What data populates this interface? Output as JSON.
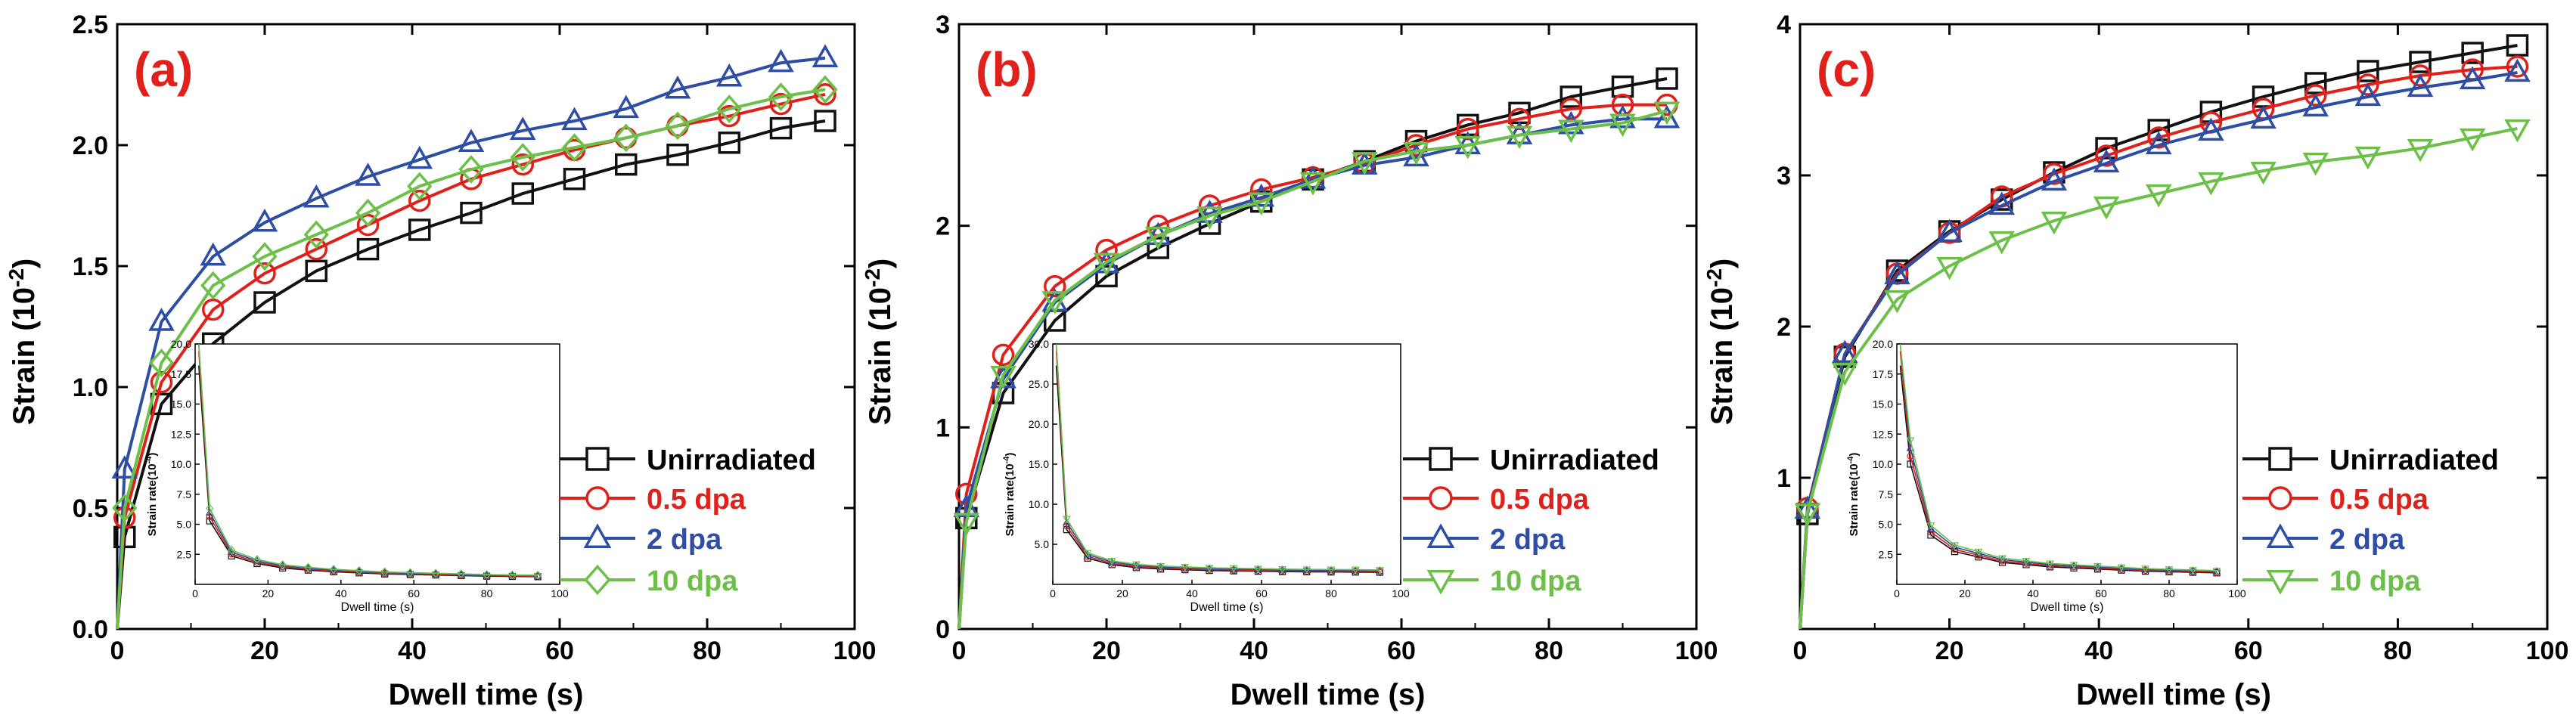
{
  "colors": {
    "Unirradiated": "#111111",
    "0.5 dpa": "#e0201b",
    "2 dpa": "#2e4ea5",
    "10 dpa": "#6cc04a",
    "panel_label": "#e0201b"
  },
  "chart_data": [
    {
      "type": "line",
      "panel": "(a)",
      "xlabel": "Dwell time (s)",
      "ylabel_prefix": "Strain (10",
      "ylabel_exp": "-2",
      "ylabel_suffix": ")",
      "xlim": [
        0,
        100
      ],
      "ylim": [
        0,
        2.5
      ],
      "xticks": [
        0,
        20,
        40,
        60,
        80,
        100
      ],
      "yticks": [
        0.0,
        0.5,
        1.0,
        1.5,
        2.0,
        2.5
      ],
      "ytick_labels": [
        "0.0",
        "0.5",
        "1.0",
        "1.5",
        "2.0",
        "2.5"
      ],
      "x": [
        0,
        1,
        6,
        13,
        20,
        27,
        34,
        41,
        48,
        55,
        62,
        69,
        76,
        83,
        90,
        96
      ],
      "series": [
        {
          "name": "Unirradiated",
          "marker": "square",
          "values": [
            0,
            0.38,
            0.93,
            1.18,
            1.35,
            1.48,
            1.57,
            1.65,
            1.72,
            1.8,
            1.86,
            1.92,
            1.96,
            2.01,
            2.07,
            2.1
          ]
        },
        {
          "name": "0.5 dpa",
          "marker": "circle",
          "values": [
            0,
            0.46,
            1.02,
            1.32,
            1.47,
            1.57,
            1.67,
            1.77,
            1.86,
            1.92,
            1.98,
            2.03,
            2.08,
            2.12,
            2.17,
            2.21
          ]
        },
        {
          "name": "2 dpa",
          "marker": "triangle-up",
          "values": [
            0,
            0.66,
            1.27,
            1.54,
            1.68,
            1.78,
            1.87,
            1.94,
            2.01,
            2.06,
            2.1,
            2.15,
            2.23,
            2.28,
            2.34,
            2.36
          ]
        },
        {
          "name": "10 dpa",
          "marker": "diamond",
          "values": [
            0,
            0.5,
            1.1,
            1.42,
            1.54,
            1.63,
            1.72,
            1.83,
            1.9,
            1.95,
            1.99,
            2.03,
            2.08,
            2.15,
            2.2,
            2.23
          ]
        }
      ],
      "inset": {
        "xlabel": "Dwell time (s)",
        "ylabel": "Strain rate(10",
        "ylabel_exp": "-4",
        "ylabel_suffix": ")",
        "xlim": [
          0,
          100
        ],
        "ylim": [
          0,
          20
        ],
        "xticks": [
          0,
          20,
          40,
          60,
          80,
          100
        ],
        "yticks": [
          2.5,
          5.0,
          7.5,
          10.0,
          12.5,
          15.0,
          17.5,
          20.0
        ],
        "ytick_labels": [
          "2.5",
          "5.0",
          "7.5",
          "10.0",
          "12.5",
          "15.0",
          "17.5",
          "20.0"
        ],
        "x": [
          1,
          4,
          10,
          17,
          24,
          31,
          38,
          45,
          52,
          59,
          66,
          73,
          80,
          87,
          94
        ],
        "values": [
          20.0,
          5.8,
          2.6,
          1.9,
          1.5,
          1.3,
          1.15,
          1.05,
          0.95,
          0.9,
          0.85,
          0.8,
          0.75,
          0.72,
          0.7
        ]
      }
    },
    {
      "type": "line",
      "panel": "(b)",
      "xlabel": "Dwell time (s)",
      "ylabel_prefix": "Strain (10",
      "ylabel_exp": "-2",
      "ylabel_suffix": ")",
      "xlim": [
        0,
        100
      ],
      "ylim": [
        0,
        3
      ],
      "xticks": [
        0,
        20,
        40,
        60,
        80,
        100
      ],
      "yticks": [
        0,
        1,
        2,
        3
      ],
      "ytick_labels": [
        "0",
        "1",
        "2",
        "3"
      ],
      "x": [
        0,
        1,
        6,
        13,
        20,
        27,
        34,
        41,
        48,
        55,
        62,
        69,
        76,
        83,
        90,
        96
      ],
      "series": [
        {
          "name": "Unirradiated",
          "marker": "square",
          "values": [
            0,
            0.55,
            1.17,
            1.53,
            1.75,
            1.89,
            2.01,
            2.12,
            2.23,
            2.32,
            2.42,
            2.5,
            2.56,
            2.64,
            2.69,
            2.73
          ]
        },
        {
          "name": "0.5 dpa",
          "marker": "circle",
          "values": [
            0,
            0.67,
            1.36,
            1.7,
            1.88,
            2.0,
            2.1,
            2.18,
            2.24,
            2.31,
            2.4,
            2.48,
            2.53,
            2.58,
            2.6,
            2.6
          ]
        },
        {
          "name": "2 dpa",
          "marker": "triangle-up",
          "values": [
            0,
            0.6,
            1.24,
            1.62,
            1.81,
            1.95,
            2.06,
            2.14,
            2.23,
            2.3,
            2.34,
            2.4,
            2.45,
            2.5,
            2.53,
            2.53
          ]
        },
        {
          "name": "10 dpa",
          "marker": "triangle-down",
          "values": [
            0,
            0.53,
            1.26,
            1.63,
            1.82,
            1.95,
            2.05,
            2.12,
            2.22,
            2.32,
            2.37,
            2.4,
            2.45,
            2.48,
            2.51,
            2.57
          ]
        }
      ],
      "inset": {
        "xlabel": "Dwell time (s)",
        "ylabel": "Strain rate(10",
        "ylabel_exp": "-4",
        "ylabel_suffix": ")",
        "xlim": [
          0,
          100
        ],
        "ylim": [
          0,
          30
        ],
        "xticks": [
          0,
          20,
          40,
          60,
          80,
          100
        ],
        "yticks": [
          5.0,
          10.0,
          15.0,
          20.0,
          25.0,
          30.0
        ],
        "ytick_labels": [
          "5.0",
          "10.0",
          "15.0",
          "20.0",
          "25.0",
          "30.0"
        ],
        "x": [
          1,
          4,
          10,
          17,
          24,
          31,
          38,
          45,
          52,
          59,
          66,
          73,
          80,
          87,
          94
        ],
        "values": [
          30.0,
          7.5,
          3.6,
          2.7,
          2.3,
          2.1,
          2.0,
          1.9,
          1.85,
          1.8,
          1.75,
          1.72,
          1.7,
          1.68,
          1.65
        ]
      }
    },
    {
      "type": "line",
      "panel": "(c)",
      "xlabel": "Dwell time (s)",
      "ylabel_prefix": "Strain (10",
      "ylabel_exp": "-2",
      "ylabel_suffix": ")",
      "xlim": [
        0,
        100
      ],
      "ylim": [
        0,
        4
      ],
      "xticks": [
        0,
        20,
        40,
        60,
        80,
        100
      ],
      "yticks": [
        1,
        2,
        3,
        4
      ],
      "ytick_labels": [
        "1",
        "2",
        "3",
        "4"
      ],
      "x": [
        0,
        1,
        6,
        13,
        20,
        27,
        34,
        41,
        48,
        55,
        62,
        69,
        76,
        83,
        90,
        96
      ],
      "series": [
        {
          "name": "Unirradiated",
          "marker": "square",
          "values": [
            0,
            0.76,
            1.8,
            2.37,
            2.63,
            2.84,
            3.02,
            3.18,
            3.3,
            3.42,
            3.52,
            3.61,
            3.69,
            3.75,
            3.81,
            3.86
          ]
        },
        {
          "name": "0.5 dpa",
          "marker": "circle",
          "values": [
            0,
            0.8,
            1.82,
            2.35,
            2.62,
            2.86,
            3.01,
            3.13,
            3.25,
            3.35,
            3.44,
            3.53,
            3.6,
            3.66,
            3.7,
            3.72
          ]
        },
        {
          "name": "2 dpa",
          "marker": "triangle-up",
          "values": [
            0,
            0.79,
            1.82,
            2.34,
            2.62,
            2.8,
            2.96,
            3.08,
            3.2,
            3.29,
            3.37,
            3.45,
            3.52,
            3.58,
            3.63,
            3.68
          ]
        },
        {
          "name": "10 dpa",
          "marker": "triangle-down",
          "values": [
            0,
            0.77,
            1.7,
            2.18,
            2.4,
            2.57,
            2.7,
            2.8,
            2.88,
            2.96,
            3.03,
            3.09,
            3.13,
            3.18,
            3.25,
            3.31
          ]
        }
      ],
      "inset": {
        "xlabel": "Dwell time (s)",
        "ylabel": "Strain rate(10",
        "ylabel_exp": "-4",
        "ylabel_suffix": ")",
        "xlim": [
          0,
          100
        ],
        "ylim": [
          0,
          20
        ],
        "xticks": [
          0,
          20,
          40,
          60,
          80,
          100
        ],
        "yticks": [
          2.5,
          5.0,
          7.5,
          10.0,
          12.5,
          15.0,
          17.5,
          20.0
        ],
        "ytick_labels": [
          "2.5",
          "5.0",
          "7.5",
          "10.0",
          "12.5",
          "15.0",
          "17.5",
          "20.0"
        ],
        "x": [
          1,
          4,
          10,
          17,
          24,
          31,
          38,
          45,
          52,
          59,
          66,
          73,
          80,
          87,
          94
        ],
        "values": [
          20.0,
          11.0,
          4.5,
          3.0,
          2.5,
          2.0,
          1.8,
          1.6,
          1.5,
          1.4,
          1.3,
          1.2,
          1.15,
          1.1,
          1.05
        ]
      }
    }
  ]
}
